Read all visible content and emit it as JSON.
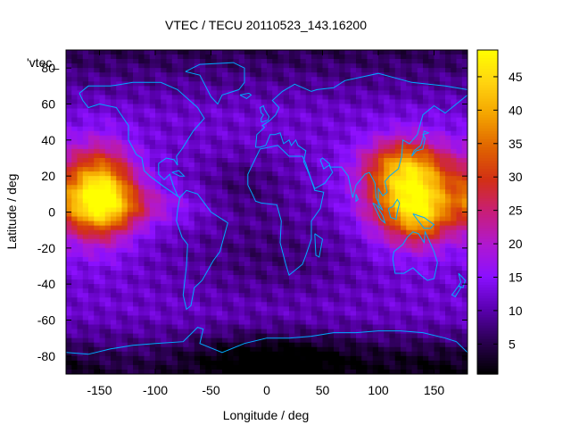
{
  "chart_data": {
    "type": "heatmap",
    "title": "VTEC / TECU 20110523_143.16200",
    "xlabel": "Longitude / deg",
    "ylabel": "Latitude / deg",
    "legend_label": "'vtec_",
    "xlim": [
      -180,
      180
    ],
    "ylim": [
      -90,
      90
    ],
    "x_ticks": [
      -150,
      -100,
      -50,
      0,
      50,
      100,
      150
    ],
    "y_ticks": [
      -80,
      -60,
      -40,
      -20,
      0,
      20,
      40,
      60,
      80
    ],
    "colorbar": {
      "range": [
        0.5,
        49
      ],
      "ticks": [
        5,
        10,
        15,
        20,
        25,
        30,
        35,
        40,
        45
      ],
      "palette": [
        "#000000",
        "#2a0050",
        "#5a00b0",
        "#8a10ff",
        "#b018d0",
        "#c81e78",
        "#d23014",
        "#e06400",
        "#f4a400",
        "#ffd410",
        "#ffff00"
      ]
    },
    "coastline_color": "#00aaff",
    "grid": false,
    "features": [
      {
        "name": "pacific-peak",
        "lon": -150,
        "lat": 10,
        "value": 46
      },
      {
        "name": "asia-peak",
        "lon": 130,
        "lat": 10,
        "value": 46
      },
      {
        "name": "polar-minimum",
        "lon": 20,
        "lat": -85,
        "value": 1
      }
    ]
  }
}
